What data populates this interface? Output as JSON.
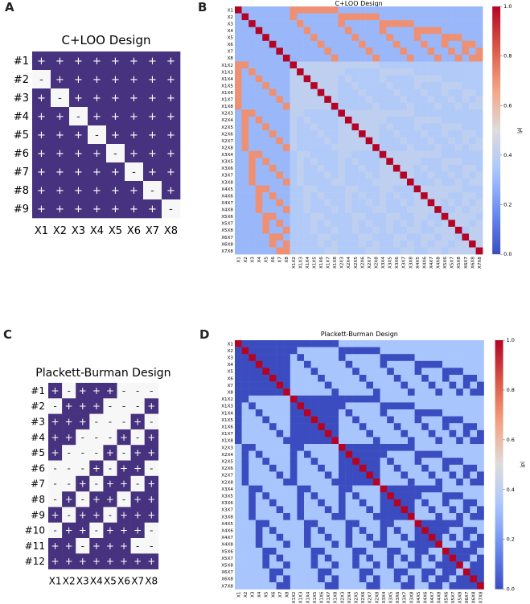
{
  "panel_labels": [
    "A",
    "B",
    "C",
    "D"
  ],
  "colors": {
    "design_dark": "#46327e",
    "design_light": "#f7f7f7",
    "colorbar_stops": [
      "#3b4cc0",
      "#6a8bef",
      "#a9c6fd",
      "#dddcdc",
      "#f4a383",
      "#d95847",
      "#b40426"
    ]
  },
  "chart_data": [
    {
      "id": "A",
      "type": "heatmap",
      "title": "C+LOO Design",
      "rows": [
        "#1",
        "#2",
        "#3",
        "#4",
        "#5",
        "#6",
        "#7",
        "#8",
        "#9"
      ],
      "cols": [
        "X1",
        "X2",
        "X3",
        "X4",
        "X5",
        "X6",
        "X7",
        "X8"
      ],
      "values": [
        [
          1,
          1,
          1,
          1,
          1,
          1,
          1,
          1
        ],
        [
          0,
          1,
          1,
          1,
          1,
          1,
          1,
          1
        ],
        [
          1,
          0,
          1,
          1,
          1,
          1,
          1,
          1
        ],
        [
          1,
          1,
          0,
          1,
          1,
          1,
          1,
          1
        ],
        [
          1,
          1,
          1,
          0,
          1,
          1,
          1,
          1
        ],
        [
          1,
          1,
          1,
          1,
          0,
          1,
          1,
          1
        ],
        [
          1,
          1,
          1,
          1,
          1,
          0,
          1,
          1
        ],
        [
          1,
          1,
          1,
          1,
          1,
          1,
          0,
          1
        ],
        [
          1,
          1,
          1,
          1,
          1,
          1,
          1,
          0
        ]
      ],
      "level_symbols": {
        "high": "+",
        "low": "-"
      }
    },
    {
      "id": "B",
      "type": "heatmap",
      "title": "C+LOO Design",
      "labels": [
        "X1",
        "X2",
        "X3",
        "X4",
        "X5",
        "X6",
        "X7",
        "X8",
        "X1X2",
        "X1X3",
        "X1X4",
        "X1X5",
        "X1X6",
        "X1X7",
        "X1X8",
        "X2X3",
        "X2X4",
        "X2X5",
        "X2X6",
        "X2X7",
        "X2X8",
        "X3X4",
        "X3X5",
        "X3X6",
        "X3X7",
        "X3X8",
        "X4X5",
        "X4X6",
        "X4X7",
        "X4X8",
        "X5X6",
        "X5X7",
        "X5X8",
        "X6X7",
        "X6X8",
        "X7X8"
      ],
      "metric": "absolute correlation |ρ| between main effects and two-factor interactions",
      "colorbar_label": "|ρ|",
      "colorbar_ticks": [
        "0.0",
        "0.2",
        "0.4",
        "0.6",
        "0.8",
        "1.0"
      ],
      "vmin": 0.0,
      "vmax": 1.0,
      "value_levels": {
        "diagonal": 1.0,
        "main_effect_vs_main_effect": 0.29,
        "main_effect_vs_own_interaction": 0.71,
        "main_effect_vs_other_interaction": 0.29,
        "interaction_sharing_one_factor": 0.4,
        "interaction_disjoint": 0.36
      }
    },
    {
      "id": "C",
      "type": "heatmap",
      "title": "Plackett-Burman Design",
      "rows": [
        "#1",
        "#2",
        "#3",
        "#4",
        "#5",
        "#6",
        "#7",
        "#8",
        "#9",
        "#10",
        "#11",
        "#12"
      ],
      "cols": [
        "X1",
        "X2",
        "X3",
        "X4",
        "X5",
        "X6",
        "X7",
        "X8"
      ],
      "values": [
        [
          1,
          0,
          1,
          1,
          1,
          0,
          0,
          0
        ],
        [
          0,
          1,
          1,
          1,
          0,
          0,
          0,
          1
        ],
        [
          1,
          1,
          1,
          0,
          0,
          0,
          1,
          0
        ],
        [
          1,
          1,
          0,
          0,
          0,
          1,
          0,
          1
        ],
        [
          1,
          0,
          0,
          0,
          1,
          0,
          1,
          1
        ],
        [
          0,
          0,
          0,
          1,
          0,
          1,
          1,
          0
        ],
        [
          0,
          0,
          1,
          0,
          1,
          1,
          0,
          1
        ],
        [
          0,
          1,
          0,
          1,
          1,
          0,
          1,
          1
        ],
        [
          1,
          0,
          1,
          1,
          0,
          1,
          1,
          1
        ],
        [
          0,
          1,
          1,
          0,
          1,
          1,
          1,
          0
        ],
        [
          1,
          1,
          0,
          1,
          1,
          1,
          0,
          0
        ],
        [
          1,
          1,
          1,
          1,
          1,
          1,
          1,
          1
        ]
      ],
      "level_symbols": {
        "high": "+",
        "low": "-"
      }
    },
    {
      "id": "D",
      "type": "heatmap",
      "title": "Plackett-Burman Design",
      "labels": [
        "X1",
        "X2",
        "X3",
        "X4",
        "X5",
        "X6",
        "X7",
        "X8",
        "X1X2",
        "X1X3",
        "X1X4",
        "X1X5",
        "X1X6",
        "X1X7",
        "X1X8",
        "X2X3",
        "X2X4",
        "X2X5",
        "X2X6",
        "X2X7",
        "X2X8",
        "X3X4",
        "X3X5",
        "X3X6",
        "X3X7",
        "X3X8",
        "X4X5",
        "X4X6",
        "X4X7",
        "X4X8",
        "X5X6",
        "X5X7",
        "X5X8",
        "X6X7",
        "X6X8",
        "X7X8"
      ],
      "metric": "absolute correlation |ρ| between main effects and two-factor interactions",
      "colorbar_label": "|ρ|",
      "colorbar_ticks": [
        "0.0",
        "0.2",
        "0.4",
        "0.6",
        "0.8",
        "1.0"
      ],
      "vmin": 0.0,
      "vmax": 1.0,
      "value_levels": {
        "diagonal": 1.0,
        "main_effect_vs_main_effect": 0.0,
        "main_effect_vs_own_interaction": 0.0,
        "main_effect_vs_other_interaction": 0.33,
        "interaction_sharing_one_factor": 0.0,
        "interaction_disjoint": 0.33
      }
    }
  ]
}
